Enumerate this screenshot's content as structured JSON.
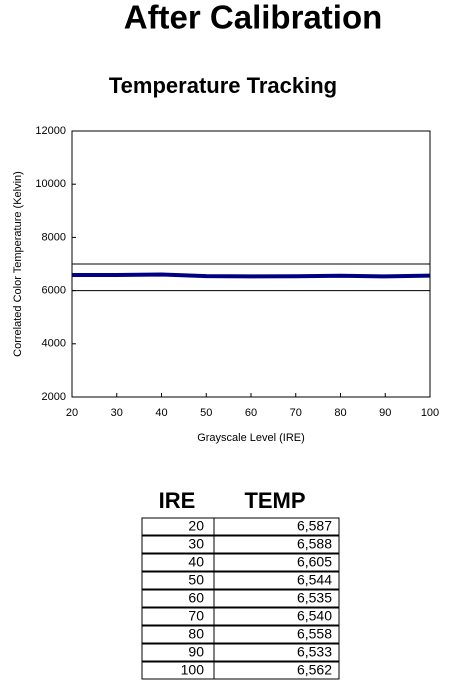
{
  "title": "After Calibration",
  "chart_data": {
    "type": "line",
    "title": "Temperature Tracking",
    "x_label": "Grayscale Level (IRE)",
    "y_label": "Correlated Color Temperature (Kelvin)",
    "x": [
      20,
      30,
      40,
      50,
      60,
      70,
      80,
      90,
      100
    ],
    "series": [
      {
        "color": "#000080",
        "values": [
          6587,
          6588,
          6605,
          6544,
          6535,
          6540,
          6558,
          6533,
          6562
        ]
      }
    ],
    "reference_lines": [
      7000,
      6000
    ],
    "xlim": [
      20,
      100
    ],
    "xticks": [
      20,
      30,
      40,
      50,
      60,
      70,
      80,
      90,
      100
    ],
    "ylim": [
      2000,
      12000
    ],
    "yticks": [
      2000,
      4000,
      6000,
      8000,
      10000,
      12000
    ]
  },
  "table": {
    "header": [
      "IRE",
      "TEMP"
    ],
    "rows": [
      [
        "20",
        "6,587"
      ],
      [
        "30",
        "6,588"
      ],
      [
        "40",
        "6,605"
      ],
      [
        "50",
        "6,544"
      ],
      [
        "60",
        "6,535"
      ],
      [
        "70",
        "6,540"
      ],
      [
        "80",
        "6,558"
      ],
      [
        "90",
        "6,533"
      ],
      [
        "100",
        "6,562"
      ]
    ]
  }
}
